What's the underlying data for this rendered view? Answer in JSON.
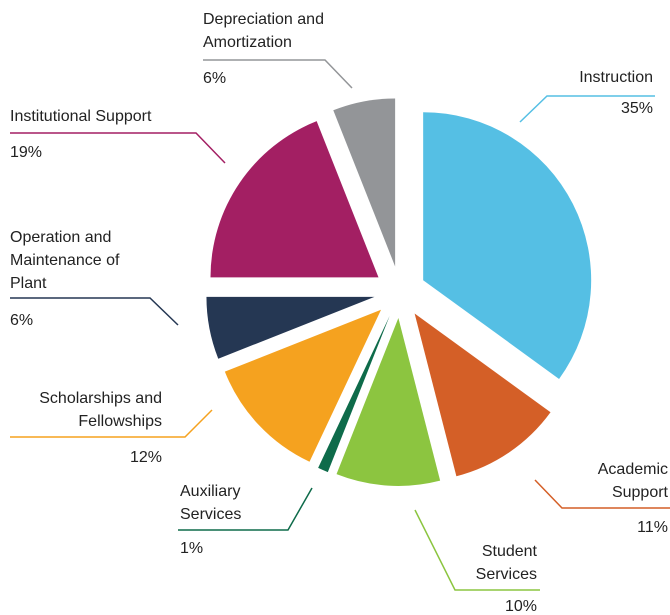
{
  "chart_data": {
    "type": "pie",
    "categories": [
      "Instruction",
      "Academic Support",
      "Student Services",
      "Auxiliary Services",
      "Scholarships and Fellowships",
      "Operation and Maintenance of Plant",
      "Institutional Support",
      "Depreciation and Amortization"
    ],
    "values": [
      35,
      11,
      10,
      1,
      12,
      6,
      19,
      6
    ],
    "value_labels": [
      "35%",
      "11%",
      "10%",
      "1%",
      "12%",
      "6%",
      "19%",
      "6%"
    ],
    "colors": [
      "#55bfe4",
      "#d45f27",
      "#8cc540",
      "#0e6b4a",
      "#f5a21f",
      "#253753",
      "#a31f63",
      "#939598"
    ]
  }
}
